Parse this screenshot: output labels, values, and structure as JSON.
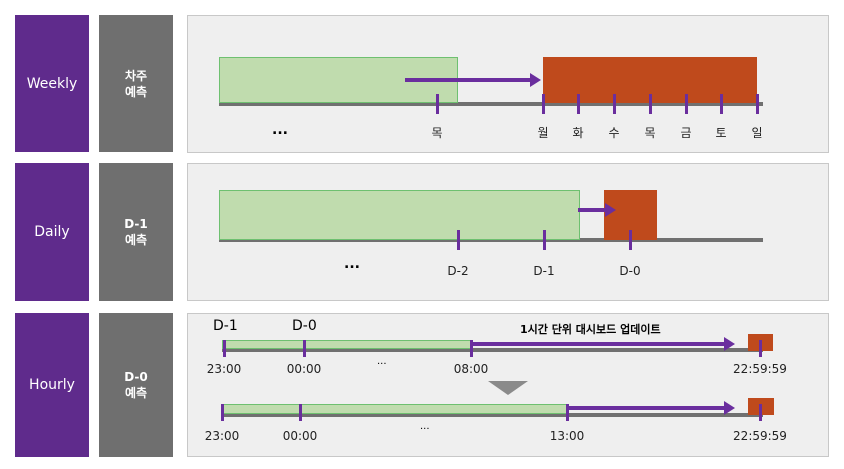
{
  "rows": [
    {
      "label": "Weekly",
      "sub": "차주\n예측"
    },
    {
      "label": "Daily",
      "sub": "D-1\n예측"
    },
    {
      "label": "Hourly",
      "sub": "D-0\n예측"
    }
  ],
  "weekly": {
    "ellipsis": "...",
    "ticks": [
      "목",
      "월",
      "화",
      "수",
      "목",
      "금",
      "토",
      "일"
    ]
  },
  "daily": {
    "ellipsis": "...",
    "ticks": [
      "D-2",
      "D-1",
      "D-0"
    ]
  },
  "hourly": {
    "day_labels": [
      "D-1",
      "D-0"
    ],
    "title": "1시간 단위 대시보드 업데이트",
    "ellipsis": "...",
    "timeline1": [
      "23:00",
      "00:00",
      "08:00",
      "22:59:59"
    ],
    "timeline2": [
      "23:00",
      "00:00",
      "13:00",
      "22:59:59"
    ]
  },
  "colors": {
    "purple": "#5f2b8c",
    "gray": "#6f6f6f",
    "green": "#c0dcae",
    "red": "#bf4a1c"
  }
}
